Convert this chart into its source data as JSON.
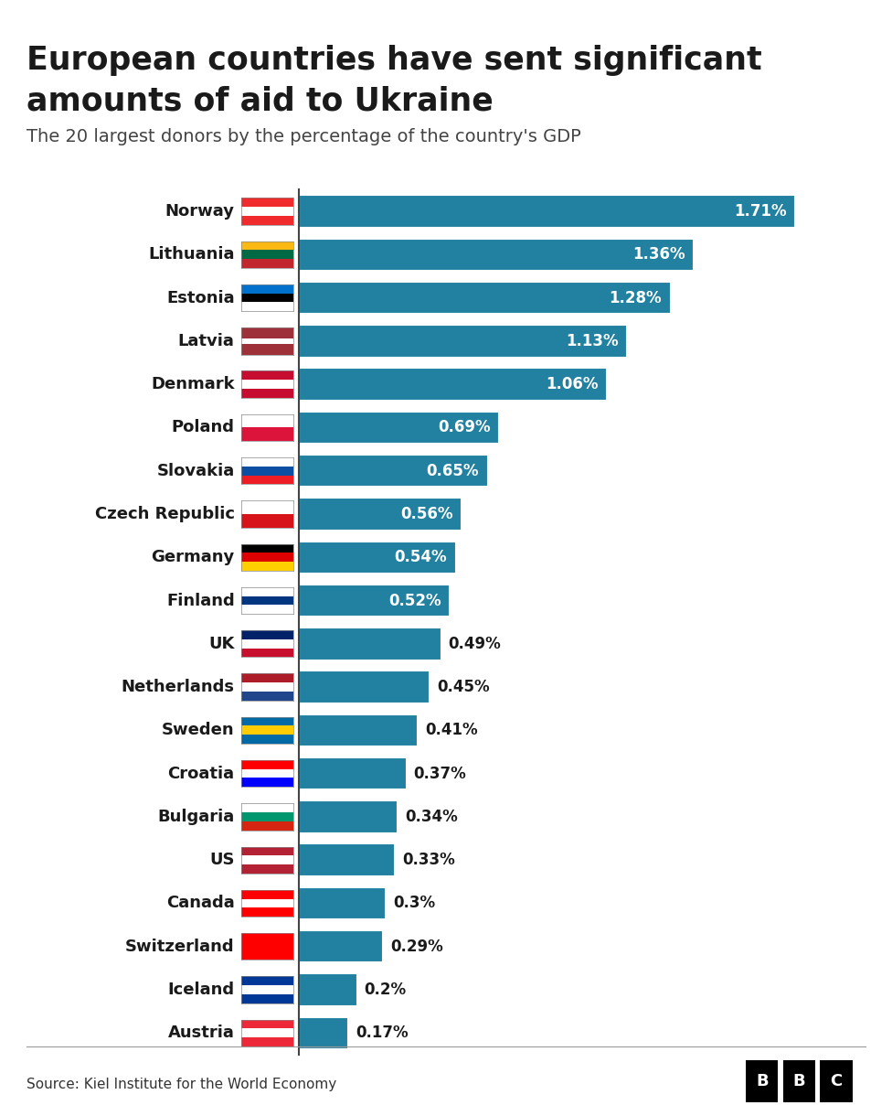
{
  "title_line1": "European countries have sent significant",
  "title_line2": "amounts of aid to Ukraine",
  "subtitle": "The 20 largest donors by the percentage of the country's GDP",
  "source": "Source: Kiel Institute for the World Economy",
  "countries": [
    "Norway",
    "Lithuania",
    "Estonia",
    "Latvia",
    "Denmark",
    "Poland",
    "Slovakia",
    "Czech Republic",
    "Germany",
    "Finland",
    "UK",
    "Netherlands",
    "Sweden",
    "Croatia",
    "Bulgaria",
    "US",
    "Canada",
    "Switzerland",
    "Iceland",
    "Austria"
  ],
  "values": [
    1.71,
    1.36,
    1.28,
    1.13,
    1.06,
    0.69,
    0.65,
    0.56,
    0.54,
    0.52,
    0.49,
    0.45,
    0.41,
    0.37,
    0.34,
    0.33,
    0.3,
    0.29,
    0.2,
    0.17
  ],
  "labels": [
    "1.71%",
    "1.36%",
    "1.28%",
    "1.13%",
    "1.06%",
    "0.69%",
    "0.65%",
    "0.56%",
    "0.54%",
    "0.52%",
    "0.49%",
    "0.45%",
    "0.41%",
    "0.37%",
    "0.34%",
    "0.33%",
    "0.3%",
    "0.29%",
    "0.2%",
    "0.17%"
  ],
  "bar_color": "#2281a0",
  "background_color": "#ffffff",
  "title_color": "#1a1a1a",
  "subtitle_color": "#444444",
  "label_color_inside": "#ffffff",
  "label_color_outside": "#1a1a1a",
  "title_fontsize": 25,
  "subtitle_fontsize": 14,
  "bar_label_fontsize": 12,
  "country_label_fontsize": 13,
  "source_fontsize": 11,
  "threshold_inside": 0.5,
  "xlim": [
    0,
    1.95
  ],
  "flags": {
    "Norway": [
      [
        "#EF2B2D",
        0.333
      ],
      [
        "white",
        0.333
      ],
      [
        "#EF2B2D",
        0.334
      ]
    ],
    "Lithuania": [
      [
        "#FDB913",
        0.333
      ],
      [
        "#006A44",
        0.333
      ],
      [
        "#C1272D",
        0.334
      ]
    ],
    "Estonia": [
      [
        "#0072CE",
        0.333
      ],
      [
        "black",
        0.333
      ],
      [
        "white",
        0.334
      ]
    ],
    "Latvia": [
      [
        "#9E3039",
        0.4
      ],
      [
        "white",
        0.2
      ],
      [
        "#9E3039",
        0.4
      ]
    ],
    "Denmark": [
      [
        "#C60C30",
        0.333
      ],
      [
        "white",
        0.333
      ],
      [
        "#C60C30",
        0.334
      ]
    ],
    "Poland": [
      [
        "white",
        0.5
      ],
      [
        "#DC143C",
        0.5
      ]
    ],
    "Slovakia": [
      [
        "white",
        0.333
      ],
      [
        "#0B4EA2",
        0.333
      ],
      [
        "#EE1C25",
        0.334
      ]
    ],
    "Czech Republic": [
      [
        "white",
        0.5
      ],
      [
        "#D7141A",
        0.5
      ]
    ],
    "Germany": [
      [
        "#000000",
        0.333
      ],
      [
        "#DD0000",
        0.333
      ],
      [
        "#FFCE00",
        0.334
      ]
    ],
    "Finland": [
      [
        "white",
        0.333
      ],
      [
        "#003580",
        0.333
      ],
      [
        "white",
        0.334
      ]
    ],
    "UK": [
      [
        "#012169",
        0.333
      ],
      [
        "white",
        0.333
      ],
      [
        "#C8102E",
        0.334
      ]
    ],
    "Netherlands": [
      [
        "#AE1C28",
        0.333
      ],
      [
        "white",
        0.333
      ],
      [
        "#21468B",
        0.334
      ]
    ],
    "Sweden": [
      [
        "#006AA7",
        0.333
      ],
      [
        "#FECC02",
        0.333
      ],
      [
        "#006AA7",
        0.334
      ]
    ],
    "Croatia": [
      [
        "#FF0000",
        0.333
      ],
      [
        "white",
        0.333
      ],
      [
        "#0000FF",
        0.334
      ]
    ],
    "Bulgaria": [
      [
        "white",
        0.333
      ],
      [
        "#00966E",
        0.333
      ],
      [
        "#D62612",
        0.334
      ]
    ],
    "US": [
      [
        "#B22234",
        0.333
      ],
      [
        "white",
        0.333
      ],
      [
        "#B22234",
        0.334
      ]
    ],
    "Canada": [
      [
        "#FF0000",
        0.333
      ],
      [
        "white",
        0.333
      ],
      [
        "#FF0000",
        0.334
      ]
    ],
    "Switzerland": [
      [
        "#FF0000",
        1.0
      ]
    ],
    "Iceland": [
      [
        "#003897",
        0.333
      ],
      [
        "white",
        0.333
      ],
      [
        "#003897",
        0.334
      ]
    ],
    "Austria": [
      [
        "#ED2939",
        0.333
      ],
      [
        "white",
        0.333
      ],
      [
        "#ED2939",
        0.334
      ]
    ]
  }
}
